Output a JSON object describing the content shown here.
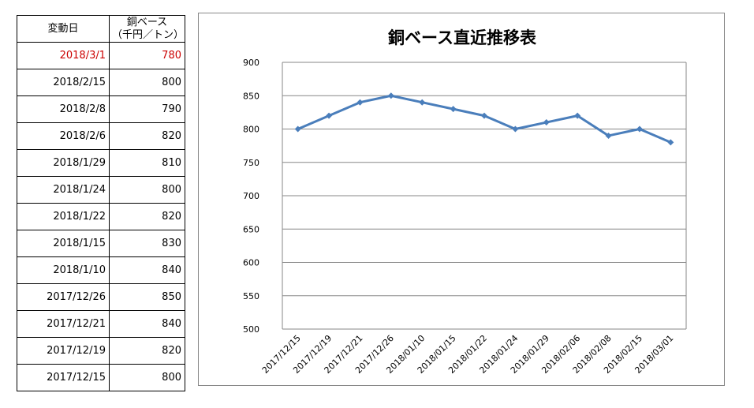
{
  "table": {
    "header_date": "変動日",
    "header_price_line1": "銅ベース",
    "header_price_line2": "（千円／トン）",
    "highlight_color": "#cc0000",
    "rows": [
      {
        "date": "2018/3/1",
        "price": "780",
        "highlight": true
      },
      {
        "date": "2018/2/15",
        "price": "800"
      },
      {
        "date": "2018/2/8",
        "price": "790"
      },
      {
        "date": "2018/2/6",
        "price": "820"
      },
      {
        "date": "2018/1/29",
        "price": "810"
      },
      {
        "date": "2018/1/24",
        "price": "800"
      },
      {
        "date": "2018/1/22",
        "price": "820"
      },
      {
        "date": "2018/1/15",
        "price": "830"
      },
      {
        "date": "2018/1/10",
        "price": "840"
      },
      {
        "date": "2017/12/26",
        "price": "850"
      },
      {
        "date": "2017/12/21",
        "price": "840"
      },
      {
        "date": "2017/12/19",
        "price": "820"
      },
      {
        "date": "2017/12/15",
        "price": "800"
      }
    ]
  },
  "chart_data": {
    "type": "line",
    "title": "銅ベース直近推移表",
    "xlabel": "",
    "ylabel": "",
    "categories": [
      "2017/12/15",
      "2017/12/19",
      "2017/12/21",
      "2017/12/26",
      "2018/01/10",
      "2018/01/15",
      "2018/01/22",
      "2018/01/24",
      "2018/01/29",
      "2018/02/06",
      "2018/02/08",
      "2018/02/15",
      "2018/03/01"
    ],
    "values": [
      800,
      820,
      840,
      850,
      840,
      830,
      820,
      800,
      810,
      820,
      790,
      800,
      780
    ],
    "ylim": [
      500,
      900
    ],
    "yticks": [
      500,
      550,
      600,
      650,
      700,
      750,
      800,
      850,
      900
    ],
    "grid": true,
    "legend": "none",
    "line_color": "#4a7ebb",
    "marker": "diamond"
  }
}
